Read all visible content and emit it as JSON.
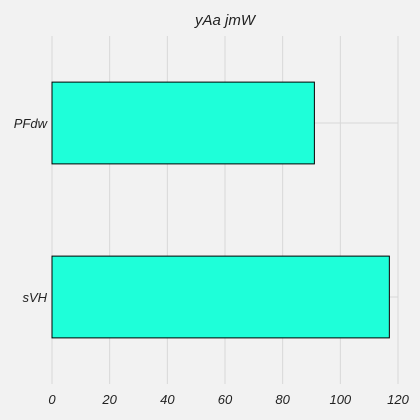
{
  "chart_data": {
    "type": "bar",
    "orientation": "horizontal",
    "title": "yAa jmW",
    "xlabel": "",
    "ylabel": "",
    "categories": [
      "PFdw",
      "sVH"
    ],
    "values": [
      91,
      117
    ],
    "xlim": [
      0,
      120
    ],
    "xticks": [
      0,
      20,
      40,
      60,
      80,
      100,
      120
    ],
    "grid": true,
    "legend": "none",
    "colors": {
      "bar": "#1effd9",
      "bar_edge": "#000000",
      "background": "#f2f2f2",
      "grid": "#d8d8d8"
    }
  }
}
